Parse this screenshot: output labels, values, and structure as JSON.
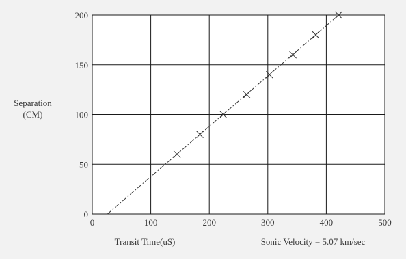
{
  "chart_data": {
    "type": "scatter",
    "xlabel": "Transit Time(uS)",
    "ylabel_lines": [
      "Separation",
      "(CM)"
    ],
    "annotation": "Sonic Velocity = 5.07 km/sec",
    "xlim": [
      0,
      500
    ],
    "ylim": [
      0,
      200
    ],
    "x_ticks": [
      0,
      100,
      200,
      300,
      400,
      500
    ],
    "y_ticks": [
      0,
      50,
      100,
      150,
      200
    ],
    "x_tick_labels": [
      "0",
      "100",
      "200",
      "300",
      "400",
      "500"
    ],
    "y_tick_labels": [
      "0",
      "50",
      "100",
      "150",
      "200"
    ],
    "grid": true,
    "series": [
      {
        "marker": "x",
        "x": [
          145,
          184,
          224,
          264,
          303,
          343,
          382,
          421
        ],
        "y": [
          60,
          80,
          100,
          120,
          140,
          160,
          180,
          200
        ]
      }
    ],
    "fit_line": {
      "style": "dash-dot",
      "x": [
        26,
        421
      ],
      "y": [
        0,
        200
      ]
    },
    "colors": {
      "background": "#f2f2f2",
      "plot_area": "#ffffff",
      "grid": "#1a1a1a",
      "marker": "#333333"
    }
  }
}
